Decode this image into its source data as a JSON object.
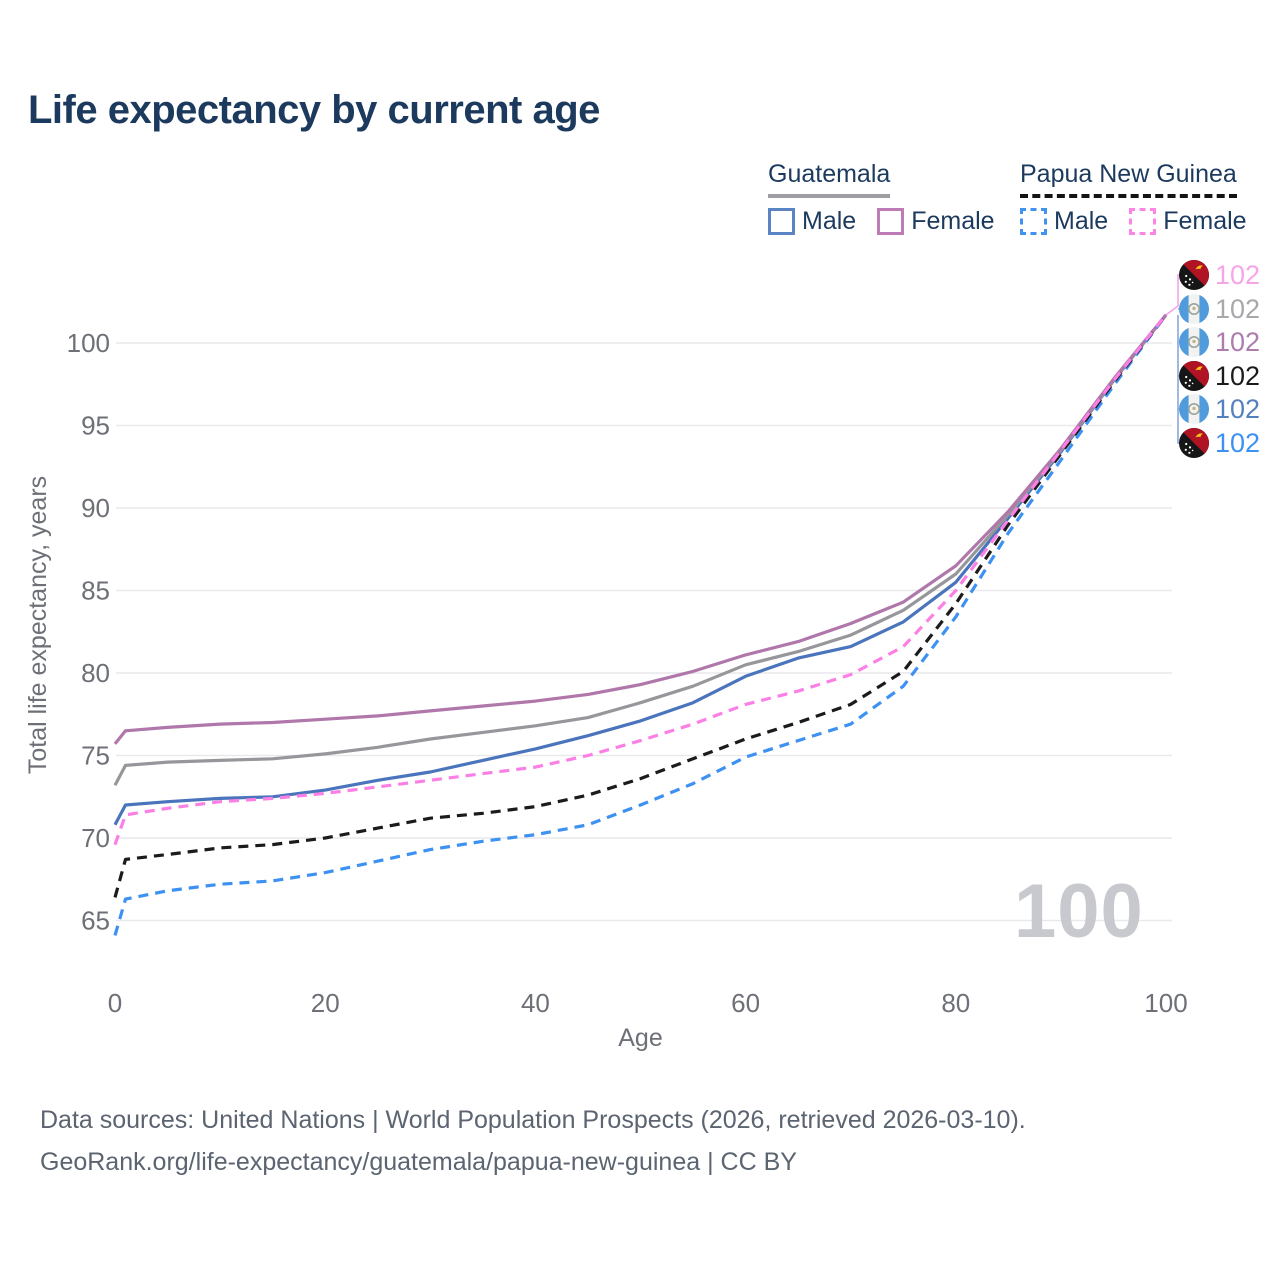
{
  "title": "Life expectancy by current age",
  "watermark_age": "100",
  "legend": {
    "groups": [
      {
        "country": "Guatemala",
        "line_style": "solid",
        "underline_color": "#9f9fa3",
        "items": [
          {
            "label": "Male",
            "color": "#5b84c4",
            "dashed": false
          },
          {
            "label": "Female",
            "color": "#bd7cb5",
            "dashed": false
          }
        ]
      },
      {
        "country": "Papua New Guinea",
        "line_style": "dashed",
        "underline_color": "#141414",
        "items": [
          {
            "label": "Male",
            "color": "#4292f0",
            "dashed": true
          },
          {
            "label": "Female",
            "color": "#fb85e5",
            "dashed": true
          }
        ]
      }
    ]
  },
  "chart_data": {
    "type": "line",
    "title": "Life expectancy by current age",
    "xlabel": "Age",
    "ylabel": "Total life expectancy, years",
    "xlim": [
      0,
      100
    ],
    "ylim": [
      63,
      103
    ],
    "x_ticks": [
      0,
      20,
      40,
      60,
      80,
      100
    ],
    "y_ticks": [
      65,
      70,
      75,
      80,
      85,
      90,
      95,
      100
    ],
    "grid": true,
    "legend_position": "top-right",
    "x": [
      0,
      1,
      5,
      10,
      15,
      20,
      25,
      30,
      35,
      40,
      45,
      50,
      55,
      60,
      65,
      70,
      75,
      80,
      85,
      90,
      95,
      100
    ],
    "series": [
      {
        "name": "Guatemala Male",
        "color": "#4a74bc",
        "dash": "solid",
        "values": [
          70.8,
          72.0,
          72.2,
          72.4,
          72.5,
          72.9,
          73.5,
          74.0,
          74.7,
          75.4,
          76.2,
          77.1,
          78.2,
          79.8,
          80.9,
          81.6,
          83.1,
          85.5,
          89.4,
          93.4,
          97.7,
          101.7
        ]
      },
      {
        "name": "Guatemala Both sexes",
        "color": "#97979b",
        "dash": "solid",
        "values": [
          73.2,
          74.4,
          74.6,
          74.7,
          74.8,
          75.1,
          75.5,
          76.0,
          76.4,
          76.8,
          77.3,
          78.2,
          79.2,
          80.5,
          81.3,
          82.3,
          83.8,
          86.0,
          89.6,
          93.5,
          97.7,
          101.7
        ]
      },
      {
        "name": "Guatemala Female",
        "color": "#b077ab",
        "dash": "solid",
        "values": [
          75.7,
          76.5,
          76.7,
          76.9,
          77.0,
          77.2,
          77.4,
          77.7,
          78.0,
          78.3,
          78.7,
          79.3,
          80.1,
          81.1,
          81.9,
          83.0,
          84.3,
          86.5,
          89.8,
          93.6,
          97.8,
          101.7
        ]
      },
      {
        "name": "Papua New Guinea Male",
        "color": "#3d91f2",
        "dash": "dashed",
        "values": [
          64.1,
          66.3,
          66.8,
          67.2,
          67.4,
          67.9,
          68.6,
          69.3,
          69.8,
          70.2,
          70.8,
          72.0,
          73.3,
          74.9,
          75.9,
          76.9,
          79.2,
          83.4,
          88.5,
          92.9,
          97.4,
          101.7
        ]
      },
      {
        "name": "Papua New Guinea Both sexes",
        "color": "#1b1b1b",
        "dash": "dashed",
        "values": [
          66.4,
          68.7,
          69.0,
          69.4,
          69.6,
          70.0,
          70.6,
          71.2,
          71.5,
          71.9,
          72.6,
          73.6,
          74.8,
          76.0,
          77.0,
          78.1,
          80.1,
          84.2,
          89.0,
          93.3,
          97.6,
          101.7
        ]
      },
      {
        "name": "Papua New Guinea Female",
        "color": "#fb7fe4",
        "dash": "dashed",
        "values": [
          69.6,
          71.4,
          71.8,
          72.2,
          72.4,
          72.7,
          73.1,
          73.5,
          73.9,
          74.3,
          75.0,
          75.9,
          76.9,
          78.1,
          78.9,
          79.9,
          81.6,
          85.0,
          89.3,
          93.5,
          97.7,
          101.7
        ]
      }
    ]
  },
  "end_labels": [
    {
      "series": "Papua New Guinea Female",
      "flag": "papua-new-guinea",
      "text": "102",
      "color": "#f7a4e8"
    },
    {
      "series": "Guatemala Both sexes",
      "flag": "guatemala",
      "text": "102",
      "color": "#a8a8ac"
    },
    {
      "series": "Guatemala Female",
      "flag": "guatemala",
      "text": "102",
      "color": "#ad7cae"
    },
    {
      "series": "Papua New Guinea Both sexes",
      "flag": "papua-new-guinea",
      "text": "102",
      "color": "#1b1b1b"
    },
    {
      "series": "Guatemala Male",
      "flag": "guatemala",
      "text": "102",
      "color": "#5580c0"
    },
    {
      "series": "Papua New Guinea Male",
      "flag": "papua-new-guinea",
      "text": "102",
      "color": "#3d91f2"
    }
  ],
  "footer": {
    "line1": "Data sources: United Nations | World Population Prospects (2026, retrieved 2026-03-10).",
    "line2": "GeoRank.org/life-expectancy/guatemala/papua-new-guinea | CC BY"
  }
}
